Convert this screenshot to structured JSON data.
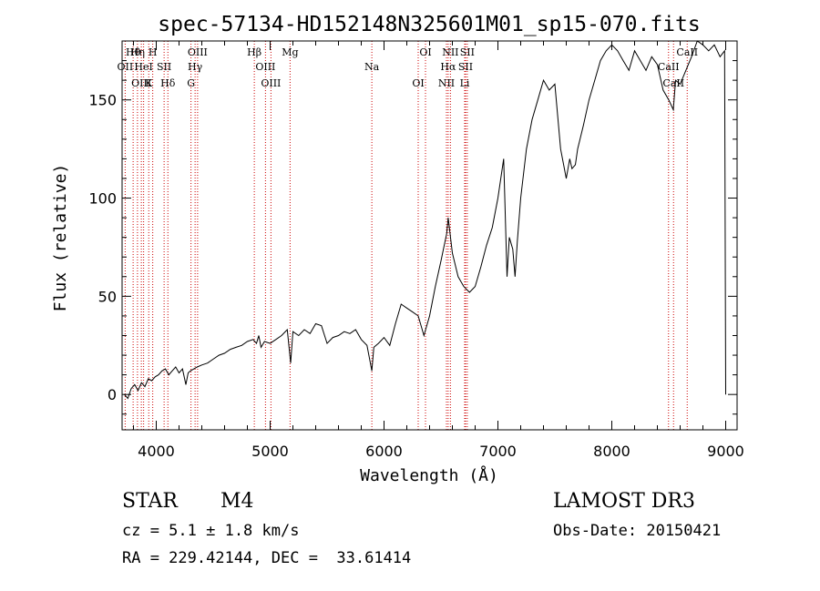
{
  "chart_data": {
    "type": "line",
    "title": "spec-57134-HD152148N325601M01_sp15-070.fits",
    "xlabel": "Wavelength (Å)",
    "ylabel": "Flux (relative)",
    "xlim": [
      3700,
      9100
    ],
    "ylim": [
      -18,
      180
    ],
    "xticks": [
      4000,
      5000,
      6000,
      7000,
      8000,
      9000
    ],
    "xtick_labels": [
      "4000",
      "5000",
      "6000",
      "7000",
      "8000",
      "9000"
    ],
    "yticks": [
      0,
      50,
      100,
      150
    ],
    "ytick_labels": [
      "0",
      "50",
      "100",
      "150"
    ],
    "series": [
      {
        "name": "flux",
        "x": [
          3720,
          3750,
          3780,
          3810,
          3840,
          3870,
          3900,
          3930,
          3960,
          3990,
          4020,
          4050,
          4080,
          4110,
          4140,
          4170,
          4200,
          4230,
          4260,
          4280,
          4300,
          4330,
          4360,
          4400,
          4450,
          4500,
          4550,
          4600,
          4650,
          4700,
          4750,
          4800,
          4850,
          4880,
          4900,
          4920,
          4950,
          5000,
          5050,
          5100,
          5150,
          5180,
          5200,
          5250,
          5300,
          5350,
          5400,
          5450,
          5500,
          5550,
          5600,
          5650,
          5700,
          5750,
          5800,
          5850,
          5880,
          5893,
          5910,
          5950,
          6000,
          6050,
          6100,
          6150,
          6200,
          6250,
          6300,
          6350,
          6400,
          6450,
          6500,
          6550,
          6563,
          6600,
          6650,
          6700,
          6750,
          6800,
          6850,
          6900,
          6950,
          7000,
          7050,
          7080,
          7100,
          7130,
          7150,
          7170,
          7200,
          7250,
          7300,
          7350,
          7400,
          7450,
          7500,
          7550,
          7600,
          7630,
          7650,
          7680,
          7700,
          7750,
          7800,
          7850,
          7900,
          7950,
          8000,
          8050,
          8100,
          8150,
          8200,
          8250,
          8300,
          8350,
          8400,
          8450,
          8500,
          8540,
          8560,
          8600,
          8650,
          8700,
          8750,
          8800,
          8850,
          8900,
          8950,
          8990,
          9000
        ],
        "y": [
          0,
          -2,
          3,
          5,
          2,
          6,
          4,
          8,
          7,
          9,
          10,
          12,
          13,
          10,
          12,
          14,
          11,
          13,
          5,
          11,
          12,
          13,
          14,
          15,
          16,
          18,
          20,
          21,
          23,
          24,
          25,
          27,
          28,
          26,
          30,
          24,
          27,
          26,
          28,
          30,
          33,
          16,
          32,
          30,
          33,
          31,
          36,
          35,
          26,
          29,
          30,
          32,
          31,
          33,
          28,
          25,
          16,
          12,
          24,
          26,
          29,
          25,
          36,
          46,
          44,
          42,
          40,
          30,
          40,
          55,
          68,
          82,
          90,
          72,
          60,
          55,
          52,
          55,
          65,
          76,
          85,
          100,
          120,
          60,
          80,
          74,
          60,
          78,
          100,
          125,
          140,
          150,
          160,
          155,
          158,
          125,
          110,
          120,
          115,
          117,
          125,
          137,
          150,
          160,
          170,
          175,
          178,
          175,
          170,
          165,
          175,
          170,
          165,
          172,
          168,
          155,
          150,
          145,
          160,
          158,
          165,
          172,
          180,
          178,
          175,
          178,
          172,
          175,
          0
        ]
      }
    ],
    "lines": [
      {
        "label": "Hθ",
        "x": 3797
      },
      {
        "label": "OII",
        "x": 3727
      },
      {
        "label": "OIII",
        "x": 3869
      },
      {
        "label": "Hη",
        "x": 3835
      },
      {
        "label": "HeI",
        "x": 3889
      },
      {
        "label": "K",
        "x": 3934
      },
      {
        "label": "H",
        "x": 3969
      },
      {
        "label": "SII",
        "x": 4069
      },
      {
        "label": "Hδ",
        "x": 4102
      },
      {
        "label": "OIII",
        "x": 4363
      },
      {
        "label": "Hγ",
        "x": 4341
      },
      {
        "label": "G",
        "x": 4305
      },
      {
        "label": "Hβ",
        "x": 4861
      },
      {
        "label": "OIII",
        "x": 4959
      },
      {
        "label": "OIII",
        "x": 5007
      },
      {
        "label": "Mg",
        "x": 5175
      },
      {
        "label": "Na",
        "x": 5893
      },
      {
        "label": "OI",
        "x": 6300
      },
      {
        "label": "OI",
        "x": 6364
      },
      {
        "label": "Hα",
        "x": 6563
      },
      {
        "label": "NII",
        "x": 6548
      },
      {
        "label": "NII",
        "x": 6583
      },
      {
        "label": "SII",
        "x": 6716
      },
      {
        "label": "Li",
        "x": 6708
      },
      {
        "label": "SII",
        "x": 6731
      },
      {
        "label": "CaII",
        "x": 8498
      },
      {
        "label": "CaII",
        "x": 8542
      },
      {
        "label": "CaII",
        "x": 8662
      }
    ]
  },
  "info": {
    "class_label": "STAR",
    "subclass": "M4",
    "survey": "LAMOST DR3",
    "cz": "cz = 5.1 ± 1.8 km/s",
    "obs_date": "Obs-Date: 20150421",
    "coords": "RA = 229.42144, DEC =  33.61414"
  },
  "colors": {
    "axis": "#000000",
    "spectrum": "#000000",
    "line_marker": "#cc0000"
  }
}
